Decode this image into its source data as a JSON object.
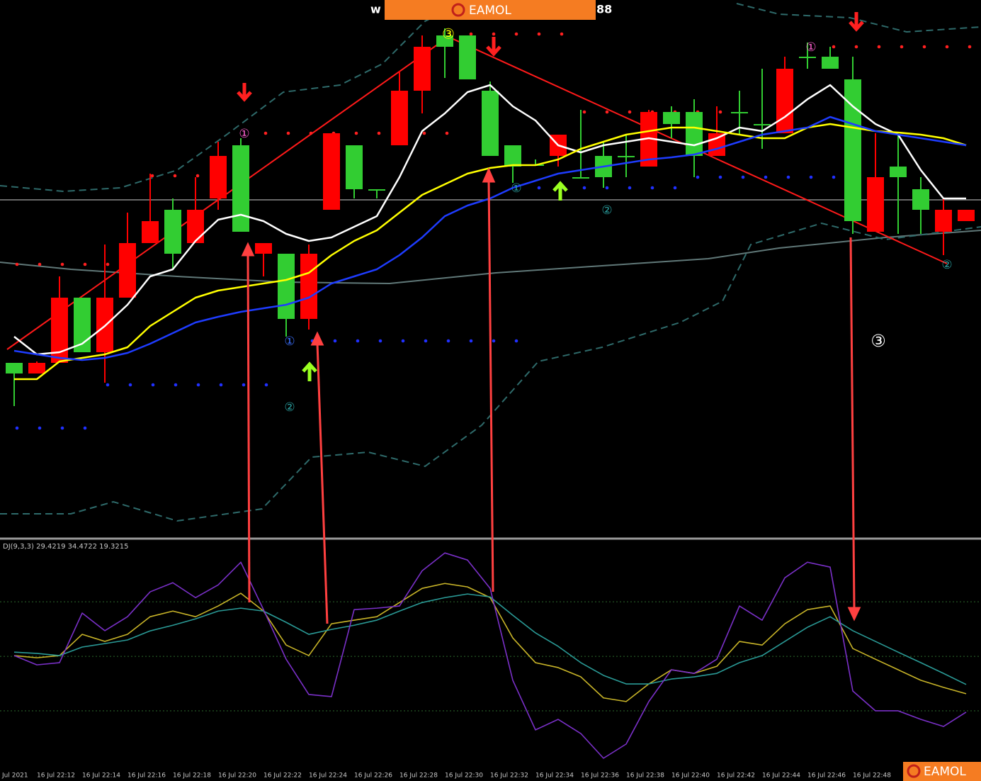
{
  "header": {
    "left": "w",
    "right": "88",
    "brand": "EAMOL"
  },
  "footer": {
    "brand": "EAMOL"
  },
  "annotations": [
    "①",
    "①",
    "③",
    "①",
    "②",
    "①",
    "②",
    "②",
    "③"
  ],
  "chart_data": [
    {
      "type": "candlestick",
      "categories": [
        "Jul 2021",
        "16 Jul 22:12",
        null,
        "16 Jul 22:14",
        null,
        "16 Jul 22:16",
        null,
        "16 Jul 22:18",
        null,
        "16 Jul 22:20",
        null,
        "16 Jul 22:22",
        null,
        "16 Jul 22:24",
        null,
        "16 Jul 22:26",
        null,
        "16 Jul 22:28",
        null,
        "16 Jul 22:30",
        null,
        "16 Jul 22:32",
        null,
        "16 Jul 22:34",
        null,
        "16 Jul 22:36",
        null,
        "16 Jul 22:38",
        null,
        "16 Jul 22:40",
        null,
        "16 Jul 22:42",
        null,
        "16 Jul 22:44",
        null,
        "16 Jul 22:46",
        null,
        "16 Jul 22:48",
        null,
        null,
        null,
        null,
        null
      ],
      "open": [
        248,
        233,
        248,
        340,
        263,
        340,
        417,
        464,
        417,
        480,
        555,
        402,
        402,
        310,
        464,
        555,
        493,
        555,
        632,
        710,
        710,
        632,
        555,
        528,
        540,
        510,
        540,
        540,
        525,
        602,
        602,
        540,
        602,
        585,
        572,
        680,
        680,
        648,
        433,
        525,
        493,
        433,
        448
      ],
      "close": [
        233,
        248,
        340,
        263,
        340,
        417,
        448,
        402,
        464,
        540,
        433,
        417,
        310,
        402,
        572,
        493,
        493,
        632,
        694,
        694,
        648,
        540,
        525,
        528,
        570,
        510,
        510,
        540,
        602,
        585,
        540,
        572,
        602,
        585,
        663,
        680,
        663,
        448,
        510,
        510,
        464,
        464,
        464
      ],
      "high": [
        248,
        250,
        370,
        340,
        415,
        460,
        515,
        480,
        510,
        560,
        565,
        417,
        402,
        415,
        572,
        555,
        493,
        660,
        710,
        720,
        710,
        645,
        555,
        535,
        570,
        605,
        560,
        570,
        605,
        610,
        620,
        610,
        632,
        663,
        680,
        700,
        694,
        680,
        572,
        570,
        510,
        480,
        464
      ],
      "low": [
        187,
        233,
        248,
        263,
        220,
        340,
        417,
        380,
        417,
        464,
        433,
        370,
        285,
        295,
        464,
        480,
        480,
        555,
        600,
        650,
        648,
        540,
        502,
        528,
        525,
        510,
        495,
        510,
        525,
        565,
        510,
        540,
        570,
        550,
        572,
        663,
        663,
        430,
        433,
        430,
        430,
        400,
        448
      ],
      "up_color": "#ff0000",
      "down_color": "#32cd32",
      "series": [
        {
          "color": "#ffffff",
          "values": [
            285,
            260,
            263,
            275,
            300,
            330,
            370,
            380,
            420,
            450,
            457,
            448,
            430,
            420,
            425,
            440,
            455,
            510,
            575,
            600,
            630,
            640,
            610,
            590,
            555,
            545,
            555,
            560,
            565,
            560,
            555,
            565,
            580,
            575,
            595,
            620,
            640,
            610,
            585,
            570,
            520,
            480,
            480
          ]
        },
        {
          "color": "#ffff00",
          "values": [
            225,
            225,
            250,
            255,
            260,
            270,
            300,
            320,
            340,
            350,
            355,
            360,
            365,
            375,
            400,
            420,
            435,
            460,
            485,
            500,
            515,
            523,
            527,
            527,
            535,
            550,
            560,
            570,
            575,
            580,
            580,
            575,
            570,
            565,
            565,
            580,
            585,
            580,
            575,
            573,
            570,
            565,
            555
          ]
        },
        {
          "color": "#1e3cff",
          "values": [
            265,
            260,
            255,
            252,
            255,
            262,
            275,
            290,
            305,
            313,
            320,
            325,
            330,
            340,
            360,
            370,
            380,
            400,
            425,
            455,
            470,
            480,
            495,
            505,
            515,
            520,
            525,
            530,
            535,
            538,
            542,
            550,
            560,
            570,
            575,
            580,
            595,
            585,
            575,
            570,
            565,
            560,
            555
          ]
        }
      ],
      "ylim": [
        0,
        760
      ]
    },
    {
      "type": "line",
      "label": "DJ(9,3,3) 29.4219 34.4722 19.3215",
      "series": [
        {
          "color": "#c8b428",
          "values": [
            50.4,
            49.2,
            50.4,
            62.1,
            58.2,
            62.1,
            71.8,
            74.9,
            71.8,
            77.7,
            84.7,
            74.9,
            56.2,
            50.4,
            67.9,
            69.9,
            71.8,
            79.6,
            87.4,
            90.1,
            88.2,
            82.3,
            60.1,
            46.5,
            43.8,
            38.7,
            27.1,
            25.1,
            34.8,
            42.6,
            40.6,
            44.5,
            58.2,
            56.2,
            67.9,
            75.7,
            77.7,
            54.3,
            48.4,
            42.6,
            36.8,
            32.9,
            29.4
          ]
        },
        {
          "color": "#2a9a96",
          "values": [
            52.3,
            51.6,
            50.4,
            55.1,
            57.0,
            59.0,
            64.0,
            67.1,
            70.6,
            74.9,
            76.5,
            74.9,
            68.7,
            62.1,
            64.8,
            67.1,
            69.9,
            74.9,
            79.6,
            82.3,
            84.3,
            82.7,
            72.6,
            62.9,
            55.5,
            46.5,
            39.5,
            34.8,
            34.8,
            37.5,
            38.7,
            40.6,
            46.5,
            50.4,
            58.2,
            66.0,
            71.8,
            64.1,
            58.2,
            52.3,
            46.5,
            40.6,
            34.5
          ]
        },
        {
          "color": "#7a30c8",
          "values": [
            50.4,
            45.3,
            46.5,
            73.8,
            64.1,
            71.8,
            85.5,
            90.5,
            82.3,
            89.3,
            101.8,
            75.7,
            48.4,
            29.0,
            27.8,
            75.7,
            76.5,
            77.7,
            97.1,
            106.9,
            103.0,
            87.4,
            36.8,
            9.5,
            15.3,
            7.5,
            -6.1,
            1.7,
            25.1,
            42.6,
            40.6,
            48.4,
            77.7,
            69.9,
            93.2,
            101.8,
            99.1,
            30.9,
            20.0,
            20.0,
            15.3,
            11.4,
            19.3
          ]
        }
      ],
      "levels": [
        20,
        50,
        80
      ],
      "ylim": [
        -12,
        114
      ]
    }
  ]
}
